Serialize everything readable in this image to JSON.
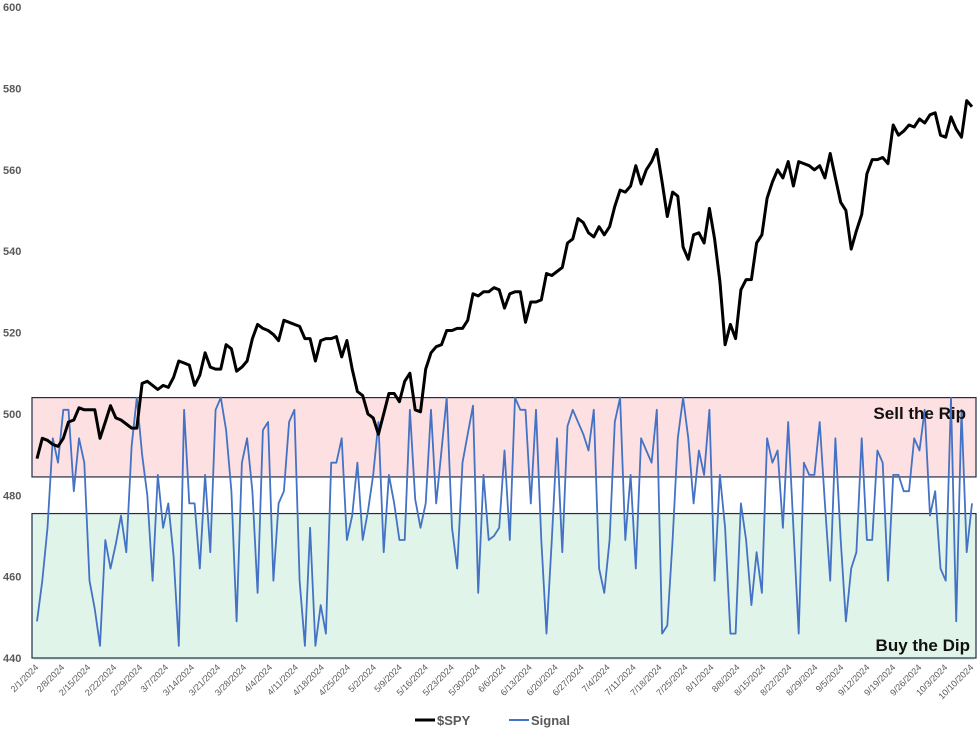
{
  "chart_data": {
    "type": "line",
    "title": "",
    "xlabel": "",
    "ylabel": "",
    "ylim": [
      440,
      600
    ],
    "yticks": [
      440,
      460,
      480,
      500,
      520,
      540,
      560,
      580,
      600
    ],
    "grid": false,
    "legend_position": "bottom",
    "x_tick_labels": [
      "2/1/2024",
      "2/8/2024",
      "2/15/2024",
      "2/22/2024",
      "2/29/2024",
      "3/7/2024",
      "3/14/2024",
      "3/21/2024",
      "3/28/2024",
      "4/4/2024",
      "4/11/2024",
      "4/18/2024",
      "4/25/2024",
      "5/2/2024",
      "5/9/2024",
      "5/16/2024",
      "5/23/2024",
      "5/30/2024",
      "6/6/2024",
      "6/13/2024",
      "6/20/2024",
      "6/27/2024",
      "7/4/2024",
      "7/11/2024",
      "7/18/2024",
      "7/25/2024",
      "8/1/2024",
      "8/8/2024",
      "8/15/2024",
      "8/22/2024",
      "8/29/2024",
      "9/5/2024",
      "9/12/2024",
      "9/19/2024",
      "9/26/2024",
      "10/3/2024",
      "10/10/2024"
    ],
    "bands": [
      {
        "name": "Sell the Rip",
        "from": 484.5,
        "to": 504,
        "color": "#fde0e2"
      },
      {
        "name": "Buy the Dip",
        "from": 440,
        "to": 475.5,
        "color": "#e0f4ea"
      }
    ],
    "series": [
      {
        "name": "$SPY",
        "color": "#000000",
        "values": [
          489,
          494,
          493.5,
          492.5,
          492,
          494,
          498,
          498.5,
          501.5,
          501,
          501,
          501,
          494,
          498,
          502,
          499,
          498.5,
          497.5,
          496.5,
          496.5,
          507.5,
          508,
          507,
          506,
          507,
          506.5,
          509,
          513,
          512.5,
          512,
          507,
          509.5,
          515,
          511.5,
          511,
          511,
          517,
          516,
          510.5,
          511.5,
          513,
          518.5,
          522,
          521,
          520.5,
          519.5,
          518,
          523,
          522.5,
          522,
          521.5,
          518.5,
          518.5,
          513,
          518,
          518.5,
          518.5,
          519,
          514,
          518,
          511,
          505.5,
          504.5,
          500,
          499,
          495,
          500,
          505,
          505,
          503,
          508,
          510,
          501,
          500.5,
          511,
          515,
          516.5,
          517,
          520.5,
          520.5,
          521,
          521,
          523,
          529.5,
          529,
          530,
          530,
          531,
          530.5,
          526,
          529.5,
          530,
          530,
          522.5,
          527.5,
          527.5,
          528,
          534.5,
          534,
          535,
          536,
          542,
          543,
          548,
          547,
          544.5,
          543.5,
          546,
          544,
          546,
          551,
          555,
          554.5,
          556,
          561,
          556.5,
          560,
          562,
          565,
          557,
          548.5,
          554.5,
          553.5,
          541,
          538,
          544,
          544.5,
          542,
          550.5,
          543,
          532.5,
          517,
          522,
          518.5,
          530.5,
          533,
          533,
          542,
          544,
          553,
          557,
          560,
          558,
          562,
          556,
          562,
          561.5,
          561,
          560,
          561,
          558,
          564,
          558,
          552,
          550,
          540.5,
          545,
          549,
          559,
          562.5,
          562.5,
          563,
          561.5,
          571,
          568.5,
          569.5,
          571,
          570.5,
          572.5,
          571.5,
          573.5,
          574,
          568.5,
          568,
          573,
          570,
          568,
          577,
          575.5
        ]
      },
      {
        "name": "Signal",
        "color": "#4472c4",
        "values": [
          449,
          459,
          472,
          494,
          488,
          501,
          501,
          481,
          494,
          488,
          459,
          452,
          443,
          469,
          462,
          468,
          475,
          466,
          492,
          504,
          490,
          480,
          459,
          485,
          472,
          478,
          465,
          443,
          501,
          478,
          478,
          462,
          485,
          466,
          501,
          504,
          496,
          481,
          449,
          488,
          494,
          481,
          456,
          496,
          498,
          459,
          478,
          481,
          498,
          501,
          459,
          443,
          472,
          443,
          453,
          446,
          488,
          488,
          494,
          469,
          475,
          488,
          469,
          476,
          485,
          498,
          466,
          485,
          478,
          469,
          469,
          501,
          479,
          472,
          478,
          501,
          478,
          491,
          504,
          472,
          462,
          488,
          495,
          502,
          456,
          485,
          469,
          470,
          472,
          491,
          469,
          504,
          501,
          501,
          478,
          501,
          469,
          446,
          469,
          494,
          466,
          497,
          501,
          498,
          495,
          491,
          501,
          462,
          456,
          469,
          498,
          504,
          469,
          485,
          462,
          494,
          491,
          488,
          501,
          446,
          448,
          469,
          494,
          504,
          494,
          478,
          491,
          485,
          501,
          459,
          485,
          472,
          446,
          446,
          478,
          469,
          453,
          466,
          456,
          494,
          488,
          491,
          472,
          498,
          472,
          446,
          488,
          485,
          485,
          498,
          478,
          459,
          494,
          469,
          449,
          462,
          466,
          494,
          469,
          469,
          491,
          488,
          459,
          485,
          485,
          481,
          481,
          494,
          491,
          501,
          475,
          481,
          462,
          459,
          504,
          449,
          501,
          466,
          478
        ]
      }
    ],
    "annotations": [
      "Sell the Rip",
      "Buy the Dip"
    ]
  },
  "legend": {
    "items": [
      {
        "label": "$SPY",
        "color": "#000000"
      },
      {
        "label": "Signal",
        "color": "#4472c4"
      }
    ]
  },
  "zones": {
    "sell_label": "Sell the Rip",
    "buy_label": "Buy the Dip"
  }
}
